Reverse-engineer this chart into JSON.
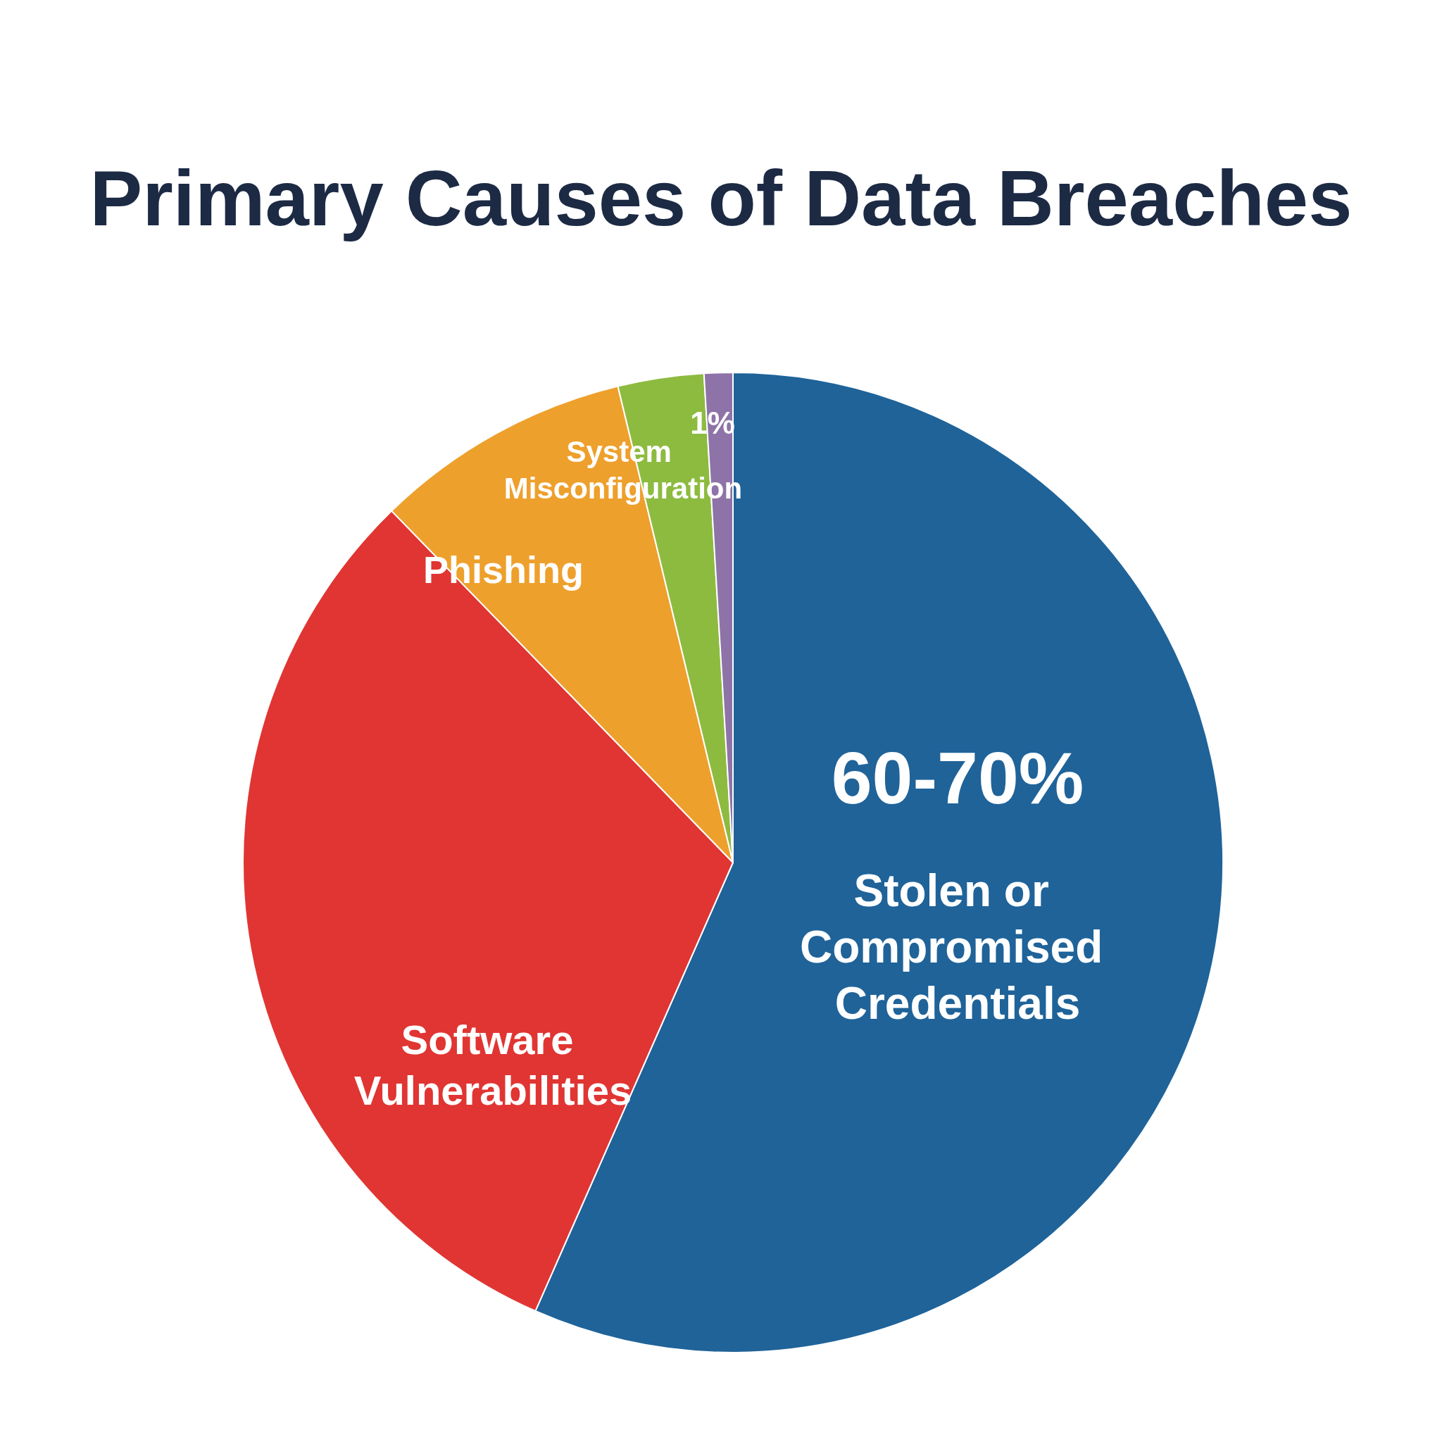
{
  "chart_data": {
    "type": "pie",
    "title": "Primary Causes of Data Breaches",
    "categories": [
      "Stolen or Compromised Credentials",
      "Software Vulnerabilities",
      "Phishing",
      "System Misconfiguration",
      null
    ],
    "values": [
      60,
      33,
      9,
      3,
      1
    ],
    "colors": [
      "#1f6399",
      "#e03532",
      "#eea02c",
      "#8dbb40",
      "#8e73a8"
    ],
    "value_labels": [
      "60-70%",
      null,
      null,
      null,
      "1%"
    ],
    "legend": false
  }
}
